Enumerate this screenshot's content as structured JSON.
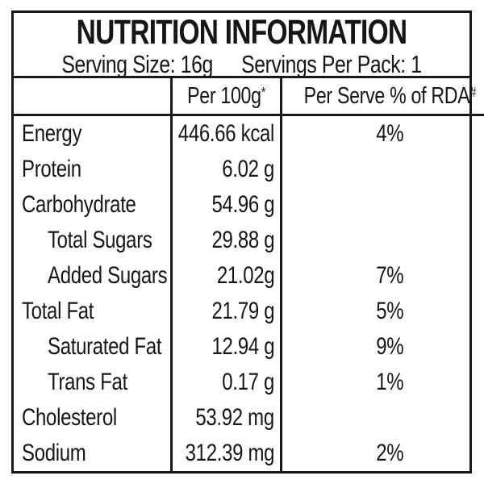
{
  "label": {
    "title": "NUTRITION INFORMATION",
    "serving_size": "Serving Size: 16g",
    "servings_per_pack": "Servings Per Pack: 1",
    "columns": {
      "amount": {
        "text": "Per 100g",
        "sup": "*"
      },
      "rda": {
        "text": "Per Serve % of RDA",
        "sup": "#"
      }
    },
    "rows": [
      {
        "label": "Energy",
        "value": "446.66 kcal",
        "rda": "4%"
      },
      {
        "label": "Protein",
        "value": "6.02 g",
        "rda": ""
      },
      {
        "label": "Carbohydrate",
        "value": "54.96 g",
        "rda": ""
      },
      {
        "label": "Total Sugars",
        "value": "29.88 g",
        "rda": ""
      },
      {
        "label": "Added Sugars",
        "value": "21.02g",
        "rda": "7%"
      },
      {
        "label": "Total Fat",
        "value": "21.79 g",
        "rda": "5%"
      },
      {
        "label": "Saturated Fat",
        "value": "12.94 g",
        "rda": "9%"
      },
      {
        "label": "Trans Fat",
        "value": "0.17 g",
        "rda": "1%"
      },
      {
        "label": "Cholesterol",
        "value": "53.92 mg",
        "rda": ""
      },
      {
        "label": "Sodium",
        "value": "312.39 mg",
        "rda": "2%"
      }
    ]
  },
  "colors": {
    "border": "#1a1a1a",
    "text": "#161616",
    "background": "#ffffff"
  }
}
